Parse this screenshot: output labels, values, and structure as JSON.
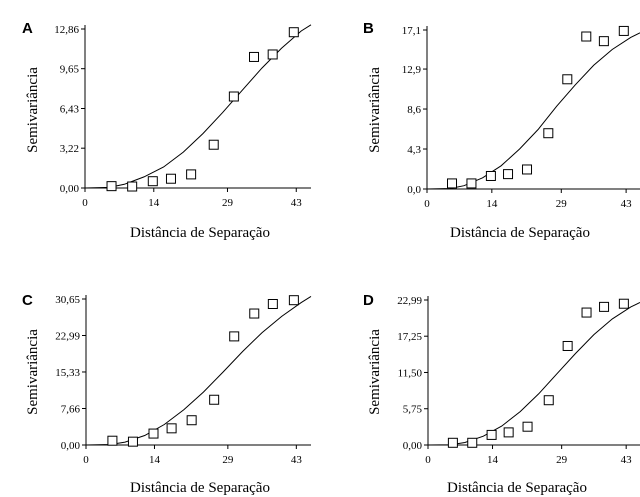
{
  "chart_data": [
    {
      "panel": "A",
      "type": "scatter",
      "xlabel": "Distância de Separação",
      "ylabel": "Semivariância",
      "xlim": [
        0,
        46
      ],
      "ylim": [
        0,
        12.86
      ],
      "xticks": [
        0,
        14,
        29,
        43
      ],
      "xtick_labels": [
        "0",
        "14",
        "29",
        "43"
      ],
      "yticks": [
        0,
        3.22,
        6.43,
        9.65,
        12.86
      ],
      "ytick_labels": [
        "0,00",
        "3,22",
        "6,43",
        "9,65",
        "12,86"
      ],
      "points": [
        [
          5.4,
          0.15
        ],
        [
          9.6,
          0.12
        ],
        [
          13.8,
          0.55
        ],
        [
          17.5,
          0.75
        ],
        [
          21.6,
          1.1
        ],
        [
          26.2,
          3.5
        ],
        [
          30.3,
          7.4
        ],
        [
          34.4,
          10.6
        ],
        [
          38.2,
          10.8
        ],
        [
          42.5,
          12.6
        ]
      ],
      "curve": [
        [
          0,
          0
        ],
        [
          5,
          0.05
        ],
        [
          8,
          0.3
        ],
        [
          12,
          0.9
        ],
        [
          16,
          1.7
        ],
        [
          20,
          2.9
        ],
        [
          24,
          4.4
        ],
        [
          28,
          6.1
        ],
        [
          32,
          7.9
        ],
        [
          36,
          9.7
        ],
        [
          40,
          11.3
        ],
        [
          44,
          12.7
        ],
        [
          46,
          13.2
        ]
      ]
    },
    {
      "panel": "B",
      "type": "scatter",
      "xlabel": "Distância de Separação",
      "ylabel": "Semivariância",
      "xlim": [
        0,
        46
      ],
      "ylim": [
        0,
        17.1
      ],
      "xticks": [
        0,
        14,
        29,
        43
      ],
      "xtick_labels": [
        "0",
        "14",
        "29",
        "43"
      ],
      "yticks": [
        0,
        4.3,
        8.6,
        12.9,
        17.1
      ],
      "ytick_labels": [
        "0,0",
        "4,3",
        "8,6",
        "12,9",
        "17,1"
      ],
      "points": [
        [
          5.4,
          0.6
        ],
        [
          9.6,
          0.6
        ],
        [
          13.8,
          1.4
        ],
        [
          17.5,
          1.6
        ],
        [
          21.6,
          2.1
        ],
        [
          26.2,
          6.0
        ],
        [
          30.3,
          11.8
        ],
        [
          34.4,
          16.4
        ],
        [
          38.2,
          15.9
        ],
        [
          42.5,
          17.0
        ]
      ],
      "curve": [
        [
          0,
          0
        ],
        [
          5,
          0.05
        ],
        [
          8,
          0.35
        ],
        [
          12,
          1.2
        ],
        [
          16,
          2.5
        ],
        [
          20,
          4.3
        ],
        [
          24,
          6.4
        ],
        [
          28,
          8.9
        ],
        [
          32,
          11.2
        ],
        [
          36,
          13.3
        ],
        [
          40,
          15.0
        ],
        [
          44,
          16.3
        ],
        [
          46,
          16.8
        ]
      ]
    },
    {
      "panel": "C",
      "type": "scatter",
      "xlabel": "Distância de Separação",
      "ylabel": "Semivariância",
      "xlim": [
        0,
        46
      ],
      "ylim": [
        0,
        30.65
      ],
      "xticks": [
        0,
        14,
        29,
        43
      ],
      "xtick_labels": [
        "0",
        "14",
        "29",
        "43"
      ],
      "yticks": [
        0,
        7.66,
        15.33,
        22.99,
        30.65
      ],
      "ytick_labels": [
        "0,00",
        "7,66",
        "15,33",
        "22,99",
        "30,65"
      ],
      "points": [
        [
          5.4,
          0.9
        ],
        [
          9.6,
          0.7
        ],
        [
          13.8,
          2.4
        ],
        [
          17.5,
          3.5
        ],
        [
          21.6,
          5.2
        ],
        [
          26.2,
          9.5
        ],
        [
          30.3,
          22.8
        ],
        [
          34.4,
          27.6
        ],
        [
          38.2,
          29.6
        ],
        [
          42.5,
          30.4
        ]
      ],
      "curve": [
        [
          0,
          0
        ],
        [
          5,
          0.1
        ],
        [
          8,
          0.6
        ],
        [
          12,
          2.0
        ],
        [
          16,
          4.3
        ],
        [
          20,
          7.4
        ],
        [
          24,
          11.1
        ],
        [
          28,
          15.3
        ],
        [
          32,
          19.6
        ],
        [
          36,
          23.6
        ],
        [
          40,
          27.0
        ],
        [
          44,
          29.9
        ],
        [
          46,
          31.2
        ]
      ]
    },
    {
      "panel": "D",
      "type": "scatter",
      "xlabel": "Distância de Separação",
      "ylabel": "Semivariância",
      "xlim": [
        0,
        46
      ],
      "ylim": [
        0,
        22.99
      ],
      "xticks": [
        0,
        14,
        29,
        43
      ],
      "xtick_labels": [
        "0",
        "14",
        "29",
        "43"
      ],
      "yticks": [
        0,
        5.75,
        11.5,
        17.25,
        22.99
      ],
      "ytick_labels": [
        "0,00",
        "5,75",
        "11,50",
        "17,25",
        "22,99"
      ],
      "points": [
        [
          5.4,
          0.35
        ],
        [
          9.6,
          0.35
        ],
        [
          13.8,
          1.6
        ],
        [
          17.5,
          2.0
        ],
        [
          21.6,
          2.9
        ],
        [
          26.2,
          7.1
        ],
        [
          30.3,
          15.7
        ],
        [
          34.4,
          21.0
        ],
        [
          38.2,
          21.9
        ],
        [
          42.5,
          22.4
        ]
      ],
      "curve": [
        [
          0,
          0
        ],
        [
          5,
          0.05
        ],
        [
          8,
          0.4
        ],
        [
          12,
          1.4
        ],
        [
          16,
          3.0
        ],
        [
          20,
          5.3
        ],
        [
          24,
          8.1
        ],
        [
          28,
          11.3
        ],
        [
          32,
          14.5
        ],
        [
          36,
          17.5
        ],
        [
          40,
          20.0
        ],
        [
          44,
          21.9
        ],
        [
          46,
          22.6
        ]
      ]
    }
  ]
}
